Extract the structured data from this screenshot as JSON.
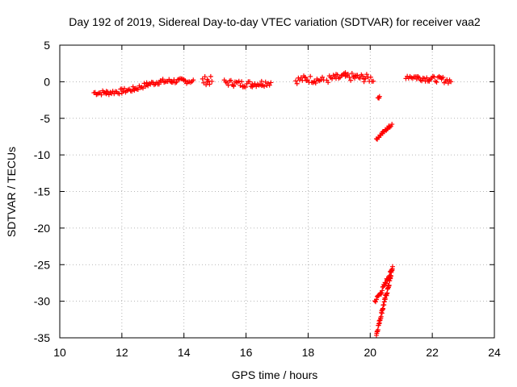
{
  "chart_data": {
    "type": "scatter",
    "title": "Day 192 of 2019, Sidereal Day-to-day VTEC variation (SDTVAR) for receiver vaa2",
    "xlabel": "GPS time / hours",
    "ylabel": "SDTVAR / TECUs",
    "xlim": [
      10,
      24
    ],
    "ylim": [
      -35,
      5
    ],
    "xticks": [
      10,
      12,
      14,
      16,
      18,
      20,
      22,
      24
    ],
    "yticks": [
      5,
      0,
      -5,
      -10,
      -15,
      -20,
      -25,
      -30,
      -35
    ],
    "grid": true,
    "marker": "+",
    "color": "#ff0000",
    "series": [
      {
        "name": "SDTVAR",
        "segments": [
          {
            "x": [
              11.1,
              11.5,
              12.0,
              12.4,
              12.8,
              13.2,
              13.6,
              14.0,
              14.3
            ],
            "y": [
              -1.5,
              -1.5,
              -1.3,
              -1.0,
              -0.4,
              0.0,
              0.1,
              0.1,
              0.1
            ],
            "spread": 0.35
          },
          {
            "x": [
              14.6,
              14.75,
              14.9
            ],
            "y": [
              0.1,
              0.2,
              0.1
            ],
            "spread": 0.6
          },
          {
            "x": [
              15.3,
              15.6,
              15.9,
              16.2,
              16.5,
              16.8
            ],
            "y": [
              -0.1,
              -0.2,
              -0.3,
              -0.3,
              -0.2,
              -0.1
            ],
            "spread": 0.45
          },
          {
            "x": [
              17.6,
              17.9,
              18.2,
              18.5
            ],
            "y": [
              0.2,
              0.4,
              0.3,
              0.2
            ],
            "spread": 0.5
          },
          {
            "x": [
              18.6,
              18.9,
              19.2,
              19.5,
              19.8,
              20.1
            ],
            "y": [
              0.3,
              0.5,
              0.7,
              0.6,
              0.5,
              0.4
            ],
            "spread": 0.55
          },
          {
            "x": [
              20.25,
              20.3
            ],
            "y": [
              -2.2,
              -2.1
            ],
            "spread": 0.1
          },
          {
            "x": [
              20.2,
              20.4,
              20.6,
              20.7
            ],
            "y": [
              -7.8,
              -7.0,
              -6.2,
              -5.8
            ],
            "spread": 0.2
          },
          {
            "x": [
              20.2,
              20.4,
              20.6,
              20.72
            ],
            "y": [
              -34.5,
              -31.0,
              -27.8,
              -25.3
            ],
            "spread": 0.3
          },
          {
            "x": [
              20.15,
              20.35,
              20.55,
              20.7
            ],
            "y": [
              -30.0,
              -28.8,
              -27.0,
              -25.8
            ],
            "spread": 0.3
          },
          {
            "x": [
              21.15,
              21.5,
              21.9,
              22.3,
              22.6
            ],
            "y": [
              0.8,
              0.6,
              0.4,
              0.3,
              0.1
            ],
            "spread": 0.4
          }
        ]
      }
    ]
  }
}
